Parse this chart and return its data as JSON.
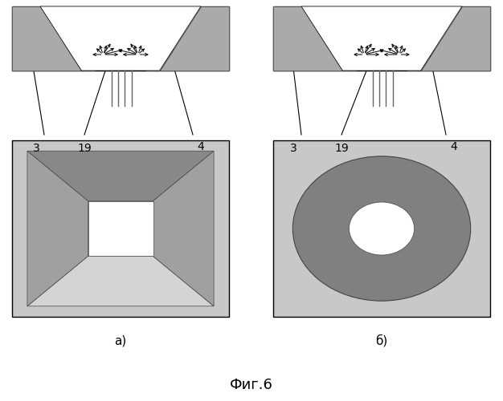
{
  "fig_label": "Фиг.6",
  "sub_a": "а)",
  "sub_b": "б)",
  "bg_color": "#ffffff",
  "rect_bg": "#c8c8c8",
  "outer_frame": "#c0c0c0",
  "dark_gray": "#808080",
  "medium_gray": "#a0a0a0",
  "light_gray": "#c0c0c0",
  "very_light_gray": "#d8d8d8",
  "dark_top_wedge": "#888888",
  "funnel_top_dark": "#888888",
  "funnel_side_dark": "#909090",
  "funnel_bottom_light": "#d0d0d0",
  "panel_outer": "#c8c8c8",
  "annulus_dark": "#808080",
  "annulus_center": "#b8b8b8"
}
